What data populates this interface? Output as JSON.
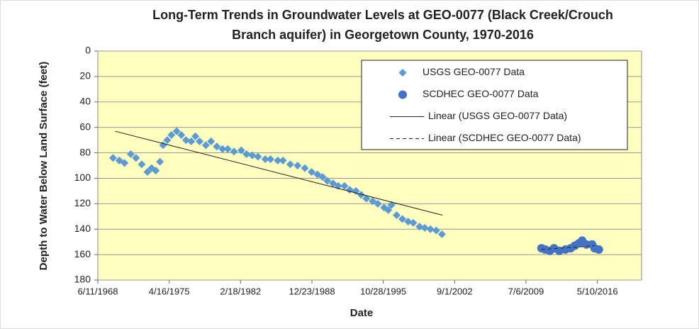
{
  "chart_data": {
    "type": "scatter",
    "title": [
      "Long-Term Trends in Groundwater Levels at GEO-0077 (Black Creek/Crouch",
      "Branch aquifer) in Georgetown County, 1970-2016"
    ],
    "x_label": "Date",
    "y_label": "Depth to Water Below Land Surface (feet)",
    "xlim": [
      1968.44,
      2020.6
    ],
    "xticks": [
      {
        "value": 1968.44,
        "label": "6/11/1968"
      },
      {
        "value": 1975.29,
        "label": "4/16/1975"
      },
      {
        "value": 1982.13,
        "label": "2/18/1982"
      },
      {
        "value": 1988.98,
        "label": "12/23/1988"
      },
      {
        "value": 1995.82,
        "label": "10/28/1995"
      },
      {
        "value": 2002.67,
        "label": "9/1/2002"
      },
      {
        "value": 2009.51,
        "label": "7/6/2009"
      },
      {
        "value": 2016.36,
        "label": "5/10/2016"
      }
    ],
    "ylim": [
      0,
      180
    ],
    "yticks": [
      0,
      20,
      40,
      60,
      80,
      100,
      120,
      140,
      160,
      180
    ],
    "y_inverted": true,
    "grid": true,
    "background": "#ffffc0",
    "legend": "top-right",
    "series": [
      {
        "name": "USGS GEO-0077 Data",
        "marker": "diamond",
        "color": "#5b9bd5",
        "x": [
          1969.9,
          1970.5,
          1971.0,
          1971.6,
          1972.1,
          1972.65,
          1973.2,
          1973.6,
          1974.0,
          1974.4,
          1974.7,
          1975.1,
          1975.5,
          1976.0,
          1976.45,
          1976.9,
          1977.4,
          1977.8,
          1978.2,
          1978.8,
          1979.3,
          1979.85,
          1980.4,
          1980.9,
          1981.5,
          1982.2,
          1982.7,
          1983.25,
          1983.8,
          1984.5,
          1985.0,
          1985.7,
          1986.2,
          1986.9,
          1987.6,
          1988.3,
          1988.95,
          1989.5,
          1990.0,
          1990.45,
          1991.0,
          1991.5,
          1992.1,
          1992.6,
          1993.2,
          1993.7,
          1994.2,
          1994.8,
          1995.3,
          1995.9,
          1996.3,
          1996.6,
          1997.1,
          1997.65,
          1998.2,
          1998.7,
          1999.3,
          1999.8,
          2000.35,
          2000.9,
          2001.45
        ],
        "values": [
          84,
          86,
          88,
          81,
          84,
          89,
          95,
          92,
          94,
          87,
          74,
          70,
          66,
          63,
          66,
          70,
          71,
          67,
          71,
          74,
          71,
          75,
          77,
          77,
          79,
          78,
          81,
          82,
          83,
          85,
          85,
          86,
          86,
          89,
          90,
          92,
          95,
          97,
          99,
          102,
          104,
          106,
          106,
          109,
          110,
          113,
          116,
          118,
          120,
          123,
          125,
          121,
          129,
          132,
          134,
          135,
          138,
          139,
          140,
          141,
          144
        ]
      },
      {
        "name": "SCDHEC GEO-0077 Data",
        "marker": "circle",
        "color": "#4472c4",
        "x": [
          2011.0,
          2011.35,
          2011.8,
          2012.2,
          2012.7,
          2013.3,
          2013.8,
          2014.2,
          2014.6,
          2014.9,
          2015.3,
          2015.85,
          2016.1,
          2016.5
        ],
        "values": [
          155,
          156,
          157,
          155,
          157,
          156,
          155,
          153,
          151,
          149,
          152,
          152,
          155,
          156
        ]
      },
      {
        "name": "Linear (USGS GEO-0077 Data)",
        "marker": "line",
        "dash": false,
        "color": "#222222",
        "x": [
          1970.1,
          2001.5
        ],
        "values": [
          63,
          129
        ]
      },
      {
        "name": "Linear (SCDHEC GEO-0077 Data)",
        "marker": "line",
        "dash": true,
        "color": "#222222",
        "x": [
          2011.0,
          2016.1
        ],
        "values": [
          156,
          153
        ]
      }
    ]
  }
}
